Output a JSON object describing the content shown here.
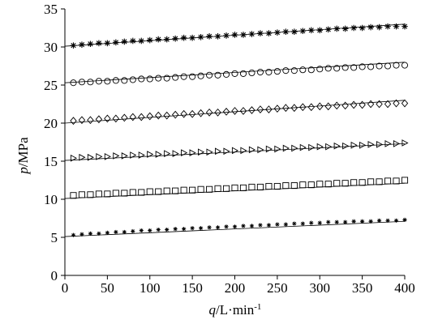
{
  "chart_data": {
    "type": "scatter",
    "xlabel": {
      "var": "q",
      "unit": "/L·min",
      "sup": "-1"
    },
    "ylabel": {
      "var": "p",
      "unit": "/MPa"
    },
    "xlim": [
      0,
      400
    ],
    "ylim": [
      0,
      35
    ],
    "xticks": [
      "0",
      "50",
      "100",
      "150",
      "200",
      "250",
      "300",
      "350",
      "400"
    ],
    "yticks": [
      "0",
      "5",
      "10",
      "15",
      "20",
      "25",
      "30",
      "35"
    ],
    "x_values": [
      10,
      20,
      30,
      40,
      50,
      60,
      70,
      80,
      90,
      100,
      110,
      120,
      130,
      140,
      150,
      160,
      170,
      180,
      190,
      200,
      210,
      220,
      230,
      240,
      250,
      260,
      270,
      280,
      290,
      300,
      310,
      320,
      330,
      340,
      350,
      360,
      370,
      380,
      390,
      400
    ],
    "series": [
      {
        "marker": "asterisk",
        "values": [
          30.2,
          30.3,
          30.4,
          30.5,
          30.5,
          30.6,
          30.7,
          30.8,
          30.8,
          30.9,
          31.0,
          31.0,
          31.1,
          31.2,
          31.2,
          31.3,
          31.4,
          31.4,
          31.5,
          31.6,
          31.6,
          31.7,
          31.8,
          31.8,
          31.9,
          32.0,
          32.0,
          32.1,
          32.2,
          32.2,
          32.3,
          32.4,
          32.4,
          32.5,
          32.5,
          32.6,
          32.6,
          32.7,
          32.7,
          32.7
        ],
        "fit": [
          30.1,
          33.0
        ]
      },
      {
        "marker": "circle",
        "values": [
          25.3,
          25.4,
          25.4,
          25.5,
          25.5,
          25.6,
          25.6,
          25.7,
          25.8,
          25.8,
          25.9,
          25.9,
          26.0,
          26.1,
          26.1,
          26.2,
          26.3,
          26.3,
          26.4,
          26.5,
          26.5,
          26.6,
          26.7,
          26.7,
          26.8,
          26.9,
          26.9,
          27.0,
          27.0,
          27.1,
          27.2,
          27.2,
          27.3,
          27.3,
          27.4,
          27.4,
          27.5,
          27.5,
          27.6,
          27.6
        ],
        "fit": [
          25.3,
          28.0
        ]
      },
      {
        "marker": "diamond",
        "values": [
          20.3,
          20.4,
          20.4,
          20.5,
          20.6,
          20.6,
          20.7,
          20.8,
          20.8,
          20.9,
          21.0,
          21.0,
          21.1,
          21.2,
          21.2,
          21.3,
          21.4,
          21.4,
          21.5,
          21.6,
          21.6,
          21.7,
          21.8,
          21.8,
          21.9,
          22.0,
          22.0,
          22.1,
          22.1,
          22.2,
          22.2,
          22.3,
          22.3,
          22.4,
          22.4,
          22.5,
          22.5,
          22.5,
          22.6,
          22.6
        ],
        "fit": [
          20.0,
          23.0
        ]
      },
      {
        "marker": "triangle-right",
        "values": [
          15.4,
          15.5,
          15.5,
          15.6,
          15.6,
          15.7,
          15.7,
          15.8,
          15.8,
          15.9,
          15.9,
          16.0,
          16.0,
          16.1,
          16.1,
          16.2,
          16.2,
          16.3,
          16.3,
          16.4,
          16.4,
          16.5,
          16.5,
          16.6,
          16.6,
          16.7,
          16.7,
          16.8,
          16.8,
          16.9,
          16.9,
          17.0,
          17.0,
          17.1,
          17.1,
          17.2,
          17.2,
          17.3,
          17.3,
          17.4
        ],
        "fit": [
          15.1,
          17.3
        ]
      },
      {
        "marker": "square",
        "values": [
          10.5,
          10.6,
          10.6,
          10.7,
          10.7,
          10.8,
          10.8,
          10.9,
          10.9,
          11.0,
          11.0,
          11.1,
          11.1,
          11.2,
          11.2,
          11.3,
          11.3,
          11.4,
          11.4,
          11.5,
          11.5,
          11.6,
          11.6,
          11.7,
          11.7,
          11.8,
          11.8,
          11.9,
          11.9,
          12.0,
          12.0,
          12.1,
          12.1,
          12.2,
          12.2,
          12.3,
          12.3,
          12.4,
          12.4,
          12.5
        ],
        "fit": [
          10.1,
          12.1
        ]
      },
      {
        "marker": "asterisk-small",
        "values": [
          5.3,
          5.4,
          5.5,
          5.5,
          5.6,
          5.7,
          5.7,
          5.8,
          5.9,
          5.9,
          6.0,
          6.0,
          6.1,
          6.1,
          6.2,
          6.2,
          6.3,
          6.3,
          6.4,
          6.4,
          6.5,
          6.5,
          6.6,
          6.6,
          6.7,
          6.7,
          6.8,
          6.8,
          6.9,
          6.9,
          7.0,
          7.0,
          7.0,
          7.1,
          7.1,
          7.1,
          7.2,
          7.2,
          7.2,
          7.3
        ],
        "fit": [
          5.1,
          7.1
        ]
      }
    ]
  }
}
